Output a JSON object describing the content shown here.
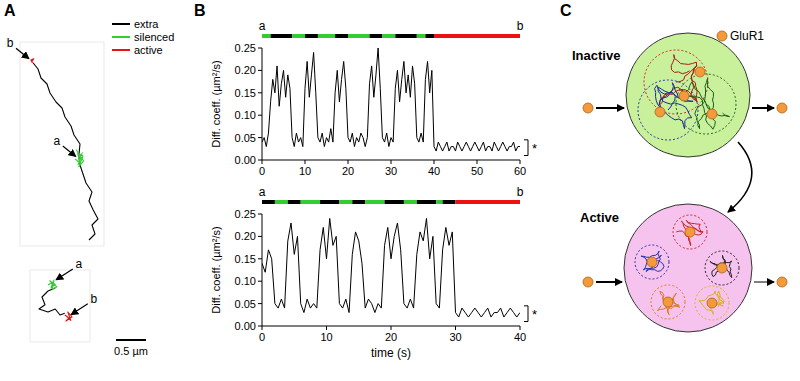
{
  "panel_labels": [
    "A",
    "B",
    "C"
  ],
  "chart_data": [
    {
      "type": "trajectory",
      "xlim": [
        0,
        1.4
      ],
      "ylim": [
        0,
        3.4
      ],
      "tick_labels": false,
      "legend": "top-right",
      "series": [
        {
          "name": "extra",
          "color": "#000000",
          "x": [
            1.15,
            1.25,
            1.2,
            1.3,
            1.22,
            1.15,
            1.2,
            1.1,
            1.05,
            1.0,
            0.98,
            1.0,
            0.9,
            0.85,
            0.75,
            0.7,
            0.6,
            0.5,
            0.45,
            0.35,
            0.3,
            0.22
          ],
          "values": [
            0.1,
            0.2,
            0.35,
            0.45,
            0.6,
            0.75,
            0.9,
            1.05,
            1.2,
            1.35,
            1.5,
            1.7,
            1.85,
            2.0,
            2.15,
            2.3,
            2.4,
            2.55,
            2.7,
            2.8,
            2.95,
            3.05
          ]
        },
        {
          "name": "silenced",
          "color": "#33cc33",
          "x": [
            0.92,
            1.0,
            0.96,
            1.05,
            0.98,
            1.06,
            0.94,
            1.02,
            0.97,
            1.04
          ],
          "values": [
            1.45,
            1.38,
            1.55,
            1.5,
            1.32,
            1.42,
            1.6,
            1.48,
            1.36,
            1.56
          ]
        },
        {
          "name": "active",
          "color": "#ee1111",
          "x": [
            0.22,
            0.18,
            0.23,
            0.19,
            0.21
          ],
          "values": [
            3.05,
            3.1,
            3.12,
            3.07,
            3.1
          ]
        }
      ],
      "annotations": [
        {
          "text": "a",
          "x": 0.98,
          "y": 1.45
        },
        {
          "text": "b",
          "x": 0.2,
          "y": 3.08
        }
      ]
    },
    {
      "type": "trajectory",
      "xlim": [
        0,
        1
      ],
      "ylim": [
        0,
        1.2
      ],
      "tick_labels": false,
      "series": [
        {
          "name": "extra",
          "color": "#000000",
          "x": [
            0.42,
            0.3,
            0.2,
            0.25,
            0.15,
            0.3,
            0.42,
            0.5,
            0.58
          ],
          "values": [
            0.9,
            0.85,
            0.75,
            0.62,
            0.55,
            0.5,
            0.55,
            0.45,
            0.48
          ]
        },
        {
          "name": "silenced",
          "color": "#33cc33",
          "x": [
            0.3,
            0.38,
            0.35,
            0.42,
            0.33,
            0.45,
            0.37,
            0.4
          ],
          "values": [
            0.95,
            1.0,
            0.9,
            0.96,
            1.02,
            0.92,
            0.88,
            1.04
          ]
        },
        {
          "name": "active",
          "color": "#ee1111",
          "x": [
            0.58,
            0.65,
            0.6,
            0.7,
            0.63,
            0.68,
            0.6
          ],
          "values": [
            0.45,
            0.4,
            0.35,
            0.42,
            0.5,
            0.36,
            0.44
          ]
        }
      ],
      "annotations": [
        {
          "text": "a",
          "x": 0.38,
          "y": 1.0
        },
        {
          "text": "b",
          "x": 0.63,
          "y": 0.42
        }
      ],
      "scale_bar": {
        "value": 0.5,
        "label": "0.5 µm"
      }
    },
    {
      "type": "line",
      "color": "#000000",
      "xlim": [
        0,
        60
      ],
      "ylim": [
        0,
        0.25
      ],
      "xticks": [
        0,
        10,
        20,
        30,
        40,
        50,
        60
      ],
      "yticks": [
        {
          "value": 0,
          "label": "0.00"
        },
        {
          "value": 0.05,
          "label": "0.05"
        },
        {
          "value": 0.1,
          "label": "0.10"
        },
        {
          "value": 0.15,
          "label": "0.15"
        },
        {
          "value": 0.2,
          "label": "0.20"
        },
        {
          "value": 0.25,
          "label": "0.25"
        }
      ],
      "ylabel": "Diff. coeff. (µm²/s)",
      "x": [
        0,
        0.5,
        1,
        1.5,
        2,
        2.5,
        3,
        3.5,
        4,
        4.5,
        5,
        5.5,
        6,
        6.5,
        7,
        7.5,
        8,
        8.5,
        9,
        9.5,
        10,
        10.5,
        11,
        11.5,
        12,
        12.5,
        13,
        13.5,
        14,
        14.5,
        15,
        15.5,
        16,
        16.5,
        17,
        17.5,
        18,
        18.5,
        19,
        19.5,
        20,
        20.5,
        21,
        21.5,
        22,
        22.5,
        23,
        23.5,
        24,
        24.5,
        25,
        25.5,
        26,
        26.5,
        27,
        27.5,
        28,
        28.5,
        29,
        29.5,
        30,
        30.5,
        31,
        31.5,
        32,
        32.5,
        33,
        33.5,
        34,
        34.5,
        35,
        35.5,
        36,
        36.5,
        37,
        37.5,
        38,
        38.5,
        39,
        39.5,
        40,
        40.5,
        41,
        41.5,
        42,
        42.5,
        43,
        43.5,
        44,
        44.5,
        45,
        45.5,
        46,
        46.5,
        47,
        47.5,
        48,
        48.5,
        49,
        49.5,
        50,
        50.5,
        51,
        51.5,
        52,
        52.5,
        53,
        53.5,
        54,
        54.5,
        55,
        55.5,
        56,
        56.5,
        57,
        57.5,
        58,
        58.5,
        59,
        59.5,
        60
      ],
      "values": [
        0.04,
        0.05,
        0.03,
        0.06,
        0.13,
        0.18,
        0.15,
        0.21,
        0.12,
        0.17,
        0.2,
        0.14,
        0.19,
        0.16,
        0.05,
        0.03,
        0.06,
        0.04,
        0.05,
        0.03,
        0.16,
        0.22,
        0.14,
        0.19,
        0.24,
        0.15,
        0.05,
        0.04,
        0.06,
        0.03,
        0.05,
        0.04,
        0.07,
        0.04,
        0.15,
        0.2,
        0.13,
        0.18,
        0.22,
        0.16,
        0.05,
        0.04,
        0.06,
        0.03,
        0.05,
        0.04,
        0.06,
        0.05,
        0.03,
        0.05,
        0.17,
        0.21,
        0.14,
        0.19,
        0.25,
        0.16,
        0.05,
        0.04,
        0.06,
        0.03,
        0.05,
        0.04,
        0.16,
        0.2,
        0.13,
        0.18,
        0.22,
        0.15,
        0.19,
        0.14,
        0.21,
        0.17,
        0.05,
        0.04,
        0.06,
        0.04,
        0.18,
        0.22,
        0.15,
        0.2,
        0.03,
        0.02,
        0.04,
        0.03,
        0.02,
        0.03,
        0.04,
        0.02,
        0.03,
        0.03,
        0.02,
        0.04,
        0.03,
        0.02,
        0.03,
        0.04,
        0.03,
        0.02,
        0.03,
        0.04,
        0.03,
        0.02,
        0.03,
        0.04,
        0.02,
        0.03,
        0.03,
        0.02,
        0.04,
        0.03,
        0.02,
        0.03,
        0.04,
        0.03,
        0.02,
        0.03,
        0.03,
        0.04,
        0.02,
        0.03,
        0.03
      ],
      "state_bar": {
        "start_label": "a",
        "end_label": "b",
        "segments": [
          {
            "start": 0,
            "end": 2,
            "state": "silenced"
          },
          {
            "start": 2,
            "end": 7,
            "state": "extra"
          },
          {
            "start": 7,
            "end": 10,
            "state": "silenced"
          },
          {
            "start": 10,
            "end": 13,
            "state": "extra"
          },
          {
            "start": 13,
            "end": 17,
            "state": "silenced"
          },
          {
            "start": 17,
            "end": 20,
            "state": "extra"
          },
          {
            "start": 20,
            "end": 25,
            "state": "silenced"
          },
          {
            "start": 25,
            "end": 28,
            "state": "extra"
          },
          {
            "start": 28,
            "end": 31,
            "state": "silenced"
          },
          {
            "start": 31,
            "end": 36,
            "state": "extra"
          },
          {
            "start": 36,
            "end": 38,
            "state": "silenced"
          },
          {
            "start": 38,
            "end": 40,
            "state": "extra"
          },
          {
            "start": 40,
            "end": 60,
            "state": "active"
          }
        ]
      },
      "annotations": [
        {
          "text": "*",
          "y_from": 0.01,
          "y_to": 0.045
        }
      ]
    },
    {
      "type": "line",
      "color": "#000000",
      "xlim": [
        0,
        40
      ],
      "ylim": [
        0,
        0.25
      ],
      "xticks": [
        0,
        10,
        20,
        30,
        40
      ],
      "yticks": [
        {
          "value": 0,
          "label": "0.00"
        },
        {
          "value": 0.05,
          "label": "0.05"
        },
        {
          "value": 0.1,
          "label": "0.10"
        },
        {
          "value": 0.15,
          "label": "0.15"
        },
        {
          "value": 0.2,
          "label": "0.20"
        },
        {
          "value": 0.25,
          "label": "0.25"
        }
      ],
      "ylabel": "Diff. coeff. (µm²/s)",
      "xlabel": "time (s)",
      "x": [
        0,
        0.5,
        1,
        1.5,
        2,
        2.5,
        3,
        3.5,
        4,
        4.5,
        5,
        5.5,
        6,
        6.5,
        7,
        7.5,
        8,
        8.5,
        9,
        9.5,
        10,
        10.5,
        11,
        11.5,
        12,
        12.5,
        13,
        13.5,
        14,
        14.5,
        15,
        15.5,
        16,
        16.5,
        17,
        17.5,
        18,
        18.5,
        19,
        19.5,
        20,
        20.5,
        21,
        21.5,
        22,
        22.5,
        23,
        23.5,
        24,
        24.5,
        25,
        25.5,
        26,
        26.5,
        27,
        27.5,
        28,
        28.5,
        29,
        29.5,
        30,
        30.5,
        31,
        31.5,
        32,
        32.5,
        33,
        33.5,
        34,
        34.5,
        35,
        35.5,
        36,
        36.5,
        37,
        37.5,
        38,
        38.5,
        39,
        39.5,
        40
      ],
      "values": [
        0.14,
        0.12,
        0.17,
        0.15,
        0.05,
        0.04,
        0.06,
        0.04,
        0.19,
        0.23,
        0.16,
        0.2,
        0.05,
        0.03,
        0.06,
        0.04,
        0.05,
        0.04,
        0.17,
        0.22,
        0.15,
        0.24,
        0.18,
        0.2,
        0.05,
        0.04,
        0.06,
        0.03,
        0.16,
        0.21,
        0.19,
        0.14,
        0.04,
        0.06,
        0.05,
        0.03,
        0.05,
        0.04,
        0.18,
        0.22,
        0.15,
        0.2,
        0.23,
        0.17,
        0.05,
        0.04,
        0.06,
        0.04,
        0.16,
        0.21,
        0.19,
        0.24,
        0.15,
        0.2,
        0.05,
        0.04,
        0.17,
        0.22,
        0.18,
        0.21,
        0.03,
        0.02,
        0.04,
        0.03,
        0.02,
        0.03,
        0.04,
        0.03,
        0.02,
        0.03,
        0.04,
        0.02,
        0.03,
        0.03,
        0.04,
        0.02,
        0.03,
        0.04,
        0.03,
        0.02,
        0.03
      ],
      "state_bar": {
        "start_label": "a",
        "end_label": "b",
        "segments": [
          {
            "start": 0,
            "end": 2,
            "state": "extra"
          },
          {
            "start": 2,
            "end": 4,
            "state": "silenced"
          },
          {
            "start": 4,
            "end": 6,
            "state": "extra"
          },
          {
            "start": 6,
            "end": 9,
            "state": "silenced"
          },
          {
            "start": 9,
            "end": 12,
            "state": "extra"
          },
          {
            "start": 12,
            "end": 14,
            "state": "silenced"
          },
          {
            "start": 14,
            "end": 16,
            "state": "extra"
          },
          {
            "start": 16,
            "end": 19,
            "state": "silenced"
          },
          {
            "start": 19,
            "end": 22,
            "state": "extra"
          },
          {
            "start": 22,
            "end": 24,
            "state": "silenced"
          },
          {
            "start": 24,
            "end": 27,
            "state": "extra"
          },
          {
            "start": 27,
            "end": 28,
            "state": "silenced"
          },
          {
            "start": 28,
            "end": 30,
            "state": "extra"
          },
          {
            "start": 30,
            "end": 40,
            "state": "active"
          }
        ]
      },
      "annotations": [
        {
          "text": "*",
          "y_from": 0.01,
          "y_to": 0.045
        }
      ]
    }
  ],
  "diagram": {
    "states": [
      {
        "label": "Inactive",
        "color": "#c9f19c"
      },
      {
        "label": "Active",
        "color": "#f6c3ee"
      }
    ],
    "particle": {
      "label": "GluR1",
      "color": "#f39b3b"
    }
  }
}
